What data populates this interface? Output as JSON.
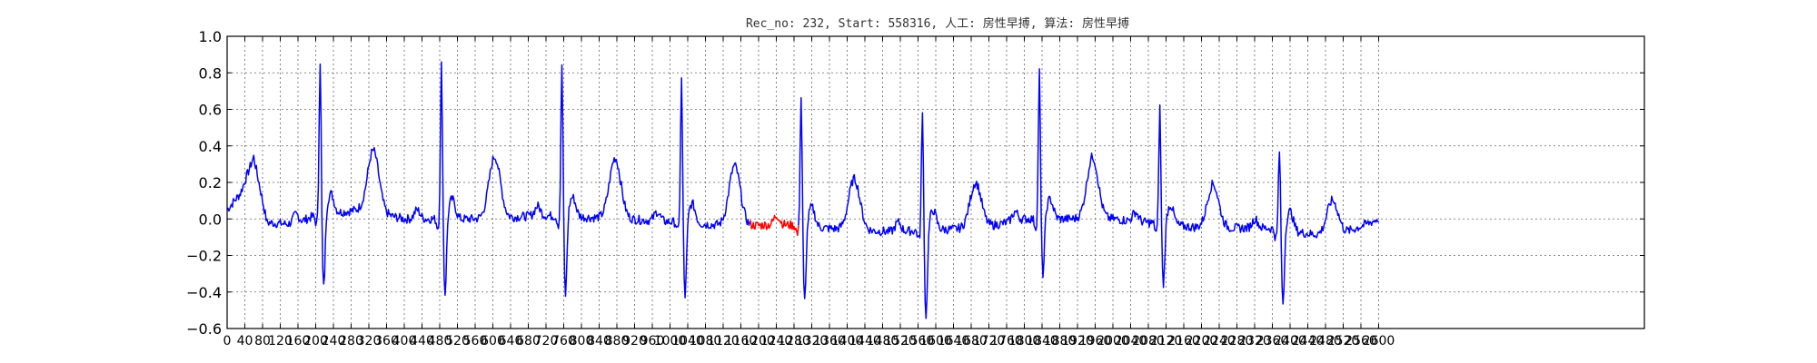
{
  "chart_data": {
    "type": "line",
    "title": "Rec_no: 232, Start: 558316, 人工: 房性早搏, 算法: 房性早搏",
    "xlabel": "",
    "ylabel": "",
    "xlim": [
      0,
      3200
    ],
    "ylim": [
      -0.6,
      1.0
    ],
    "grid": true,
    "legend": "none",
    "yticks": [
      "−0.6",
      "−0.4",
      "−0.2",
      "0.0",
      "0.2",
      "0.4",
      "0.6",
      "0.8",
      "1.0"
    ],
    "xtick_values": [
      0,
      40,
      80,
      120,
      160,
      200,
      240,
      280,
      320,
      360,
      400,
      440,
      480,
      520,
      560,
      600,
      640,
      680,
      720,
      760,
      800,
      840,
      880,
      920,
      960,
      1000,
      1040,
      1080,
      1120,
      1160,
      1200,
      1240,
      1280,
      1320,
      1360,
      1400,
      1440,
      1480,
      1520,
      1560,
      1600,
      1640,
      1680,
      1720,
      1760,
      1800,
      1840,
      1880,
      1920,
      1960,
      2000,
      2040,
      2080,
      2120,
      2160,
      2200,
      2240,
      2280,
      2320,
      2360,
      2400,
      2440,
      2480,
      2520,
      2560,
      2600
    ],
    "xtick_labels": [
      "0",
      "40",
      "80",
      "120",
      "160",
      "200",
      "240",
      "280",
      "320",
      "360",
      "400",
      "440",
      "480",
      "520",
      "560",
      "600",
      "640",
      "680",
      "720",
      "760",
      "800",
      "840",
      "880",
      "920",
      "960",
      "1000",
      "1040",
      "1080",
      "1120",
      "1160",
      "1200",
      "1240",
      "1280",
      "1320",
      "1360",
      "1400",
      "1440",
      "1480",
      "1520",
      "1560",
      "1600",
      "1640",
      "1680",
      "1720",
      "1760",
      "1800",
      "1840",
      "1880",
      "1920",
      "1960",
      "2000",
      "2040",
      "2080",
      "2120",
      "2160",
      "2200",
      "2240",
      "2280",
      "2320",
      "2360",
      "2400",
      "2440",
      "2480",
      "2520",
      "2560",
      "2600"
    ],
    "series": [
      {
        "color": "#0000ff",
        "segments": [
          [
            0,
            1180
          ],
          [
            1290,
            2600
          ]
        ]
      },
      {
        "color": "#ff0000",
        "segments": [
          [
            1180,
            1290
          ]
        ]
      }
    ],
    "beats": [
      {
        "r": 210,
        "r_amp": 0.86,
        "s_amp": -0.36,
        "t_amp": 0.34
      },
      {
        "r": 484,
        "r_amp": 0.86,
        "s_amp": -0.37,
        "t_amp": 0.34
      },
      {
        "r": 756,
        "r_amp": 0.85,
        "s_amp": -0.39,
        "t_amp": 0.33
      },
      {
        "r": 1026,
        "r_amp": 0.8,
        "s_amp": -0.36,
        "t_amp": 0.33
      },
      {
        "r": 1296,
        "r_amp": 0.72,
        "s_amp": -0.37,
        "t_amp": 0.28
      },
      {
        "r": 1570,
        "r_amp": 0.66,
        "s_amp": -0.43,
        "t_amp": 0.25
      },
      {
        "r": 1834,
        "r_amp": 0.82,
        "s_amp": -0.26,
        "t_amp": 0.34
      },
      {
        "r": 2106,
        "r_amp": 0.65,
        "s_amp": -0.29,
        "t_amp": 0.24
      },
      {
        "r": 2376,
        "r_amp": 0.45,
        "s_amp": -0.36,
        "t_amp": 0.2
      }
    ],
    "baseline": [
      [
        0,
        0.05
      ],
      [
        30,
        0.14
      ],
      [
        60,
        0.34
      ],
      [
        90,
        -0.02
      ],
      [
        150,
        -0.03
      ],
      [
        200,
        0.02
      ],
      [
        300,
        0.05
      ],
      [
        400,
        0.0
      ],
      [
        600,
        0.0
      ],
      [
        700,
        0.02
      ],
      [
        900,
        0.0
      ],
      [
        1150,
        -0.04
      ],
      [
        1250,
        -0.03
      ],
      [
        1400,
        -0.06
      ],
      [
        1500,
        -0.07
      ],
      [
        1700,
        -0.05
      ],
      [
        1800,
        0.0
      ],
      [
        2000,
        0.0
      ],
      [
        2200,
        -0.05
      ],
      [
        2350,
        -0.05
      ],
      [
        2500,
        -0.1
      ],
      [
        2600,
        0.0
      ]
    ]
  }
}
